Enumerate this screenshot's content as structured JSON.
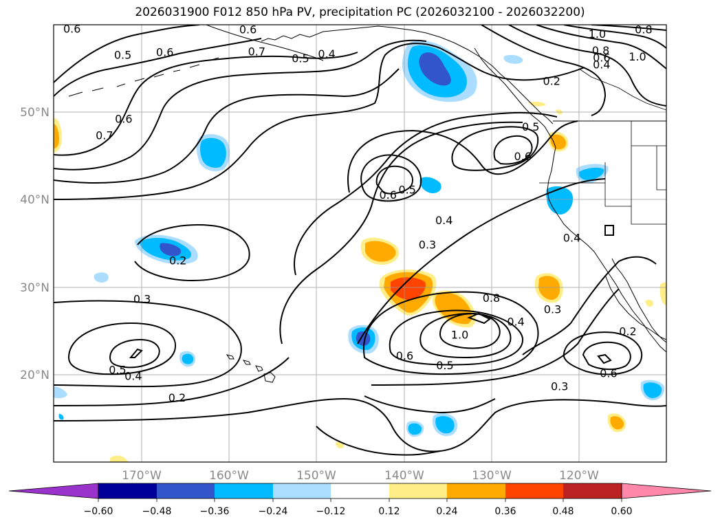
{
  "title": "2026031900 F012 850 hPa PV, precipitation PC (2026032100 - 2026032200)",
  "map": {
    "projection": "PlateCarree",
    "lon_range": [
      -180,
      -110
    ],
    "lat_range": [
      10,
      60
    ],
    "lat_ticks": [
      {
        "value": 50,
        "label": "50°N"
      },
      {
        "value": 40,
        "label": "40°N"
      },
      {
        "value": 30,
        "label": "30°N"
      },
      {
        "value": 20,
        "label": "20°N"
      }
    ],
    "lon_ticks": [
      {
        "value": -170,
        "label": "170°W"
      },
      {
        "value": -160,
        "label": "160°W"
      },
      {
        "value": -150,
        "label": "150°W"
      },
      {
        "value": -140,
        "label": "140°W"
      },
      {
        "value": -130,
        "label": "130°W"
      },
      {
        "value": -120,
        "label": "120°W"
      }
    ],
    "grid": true
  },
  "pv_contours": {
    "labels": [
      {
        "text": "0.6",
        "lon": -177.9,
        "lat": 59.5
      },
      {
        "text": "0.5",
        "lon": -172.1,
        "lat": 56.5
      },
      {
        "text": "0.6",
        "lon": -167.3,
        "lat": 56.8
      },
      {
        "text": "0.6",
        "lon": -157.8,
        "lat": 59.4
      },
      {
        "text": "0.7",
        "lon": -156.8,
        "lat": 56.9
      },
      {
        "text": "0.5",
        "lon": -151.8,
        "lat": 56.1
      },
      {
        "text": "0.4",
        "lon": -148.8,
        "lat": 56.6
      },
      {
        "text": "1.0",
        "lon": -117.9,
        "lat": 58.9
      },
      {
        "text": "0.8",
        "lon": -112.6,
        "lat": 59.4
      },
      {
        "text": "0.8",
        "lon": -117.5,
        "lat": 57.0
      },
      {
        "text": "0.6",
        "lon": -117.4,
        "lat": 56.2
      },
      {
        "text": "1.0",
        "lon": -113.3,
        "lat": 56.3
      },
      {
        "text": "0.4",
        "lon": -117.4,
        "lat": 55.4
      },
      {
        "text": "0.2",
        "lon": -123.1,
        "lat": 53.5
      },
      {
        "text": "0.6",
        "lon": -172.0,
        "lat": 49.2
      },
      {
        "text": "0.7",
        "lon": -174.2,
        "lat": 47.3
      },
      {
        "text": "0.5",
        "lon": -125.5,
        "lat": 48.3
      },
      {
        "text": "0.6",
        "lon": -126.4,
        "lat": 44.9
      },
      {
        "text": "0.6",
        "lon": -141.8,
        "lat": 40.5
      },
      {
        "text": "0.5",
        "lon": -139.6,
        "lat": 41.1
      },
      {
        "text": "0.4",
        "lon": -135.4,
        "lat": 37.6
      },
      {
        "text": "0.4",
        "lon": -120.8,
        "lat": 35.6
      },
      {
        "text": "0.3",
        "lon": -137.3,
        "lat": 34.8
      },
      {
        "text": "0.2",
        "lon": -165.8,
        "lat": 33.0
      },
      {
        "text": "0.3",
        "lon": -169.9,
        "lat": 28.6
      },
      {
        "text": "0.8",
        "lon": -130.0,
        "lat": 28.7
      },
      {
        "text": "0.4",
        "lon": -127.2,
        "lat": 26.0
      },
      {
        "text": "0.3",
        "lon": -123.0,
        "lat": 27.4
      },
      {
        "text": "0.2",
        "lon": -114.4,
        "lat": 24.9
      },
      {
        "text": "1.0",
        "lon": -133.6,
        "lat": 24.5
      },
      {
        "text": "0.6",
        "lon": -139.9,
        "lat": 22.1
      },
      {
        "text": "0.5",
        "lon": -135.3,
        "lat": 21.0
      },
      {
        "text": "0.5",
        "lon": -172.7,
        "lat": 20.5
      },
      {
        "text": "0.4",
        "lon": -170.9,
        "lat": 19.8
      },
      {
        "text": "0.6",
        "lon": -116.6,
        "lat": 20.1
      },
      {
        "text": "0.3",
        "lon": -122.2,
        "lat": 18.6
      },
      {
        "text": "0.2",
        "lon": -165.9,
        "lat": 17.3
      }
    ]
  },
  "colorbar": {
    "ticks": [
      "−0.60",
      "−0.48",
      "−0.36",
      "−0.24",
      "−0.12",
      "0.12",
      "0.24",
      "0.36",
      "0.48",
      "0.60"
    ],
    "colors": [
      "#9933cc",
      "#000099",
      "#3355cc",
      "#00bbff",
      "#aaddff",
      "#ffffff",
      "#ffee88",
      "#ffaa00",
      "#ff4400",
      "#bb2222",
      "#ff88aa"
    ],
    "extend": "both"
  }
}
